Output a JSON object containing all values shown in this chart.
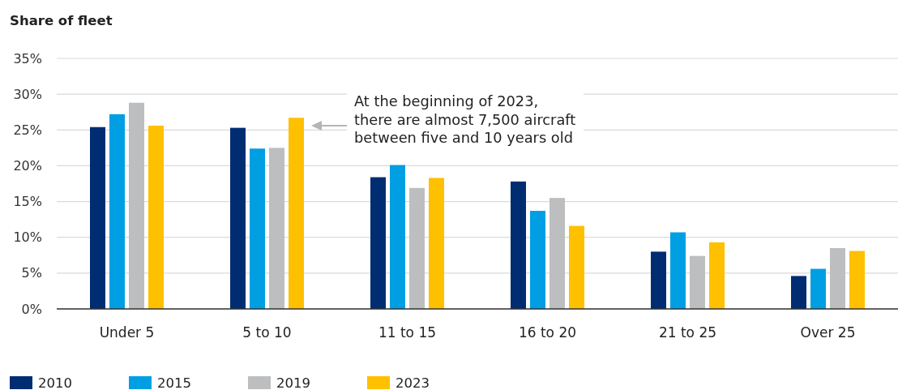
{
  "chart_data": {
    "type": "bar",
    "ylabel": "Share of fleet",
    "categories": [
      "Under 5",
      "5 to 10",
      "11 to 15",
      "16 to 20",
      "21 to 25",
      "Over 25"
    ],
    "series": [
      {
        "name": "2010",
        "color": "#002d72",
        "values": [
          25.4,
          25.3,
          18.4,
          17.8,
          8.0,
          4.6
        ]
      },
      {
        "name": "2015",
        "color": "#009fe3",
        "values": [
          27.2,
          22.4,
          20.1,
          13.7,
          10.7,
          5.6
        ]
      },
      {
        "name": "2019",
        "color": "#bcbec0",
        "values": [
          28.8,
          22.5,
          16.9,
          15.5,
          7.4,
          8.5
        ]
      },
      {
        "name": "2023",
        "color": "#ffc000",
        "values": [
          25.6,
          26.7,
          18.3,
          11.6,
          9.3,
          8.1
        ]
      }
    ],
    "ylim": [
      0,
      35
    ],
    "yticks": [
      {
        "value": 0,
        "label": "0%"
      },
      {
        "value": 5,
        "label": "5%"
      },
      {
        "value": 10,
        "label": "10%"
      },
      {
        "value": 15,
        "label": "15%"
      },
      {
        "value": 20,
        "label": "20%"
      },
      {
        "value": 25,
        "label": "25%"
      },
      {
        "value": 30,
        "label": "30%"
      },
      {
        "value": 35,
        "label": "35%"
      }
    ],
    "grid": "y",
    "legend": "bottom",
    "annotations": [
      "At the beginning of 2023,\nthere are almost 7,500 aircraft\nbetween five and 10 years old"
    ]
  }
}
